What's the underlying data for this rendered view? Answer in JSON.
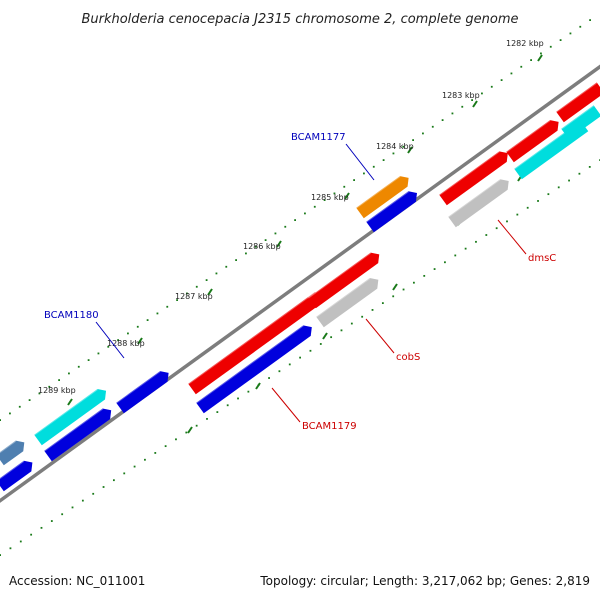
{
  "title": "Burkholderia cenocepacia J2315 chromosome 2, complete genome",
  "footer": {
    "accession": "Accession: NC_011001",
    "stats": "Topology: circular; Length: 3,217,062 bp; Genes: 2,819"
  },
  "colors": {
    "backbone": "#7d7d7d",
    "tick": "#1a7a1a",
    "red": "#ee0000",
    "blue": "#0000dd",
    "cyan": "#00dddd",
    "grey": "#c0c0c0",
    "orange": "#ee8800",
    "steel": "#4f7fb0",
    "label_blue": "#0000bb",
    "label_red": "#cc0000"
  },
  "ticks": [
    "1282 kbp",
    "1283 kbp",
    "1284 kbp",
    "1285 kbp",
    "1286 kbp",
    "1287 kbp",
    "1288 kbp",
    "1289 kbp"
  ],
  "gene_labels": [
    {
      "name": "BCAM1177",
      "color": "label_blue"
    },
    {
      "name": "BCAM1180",
      "color": "label_blue"
    },
    {
      "name": "dmsC",
      "color": "label_red"
    },
    {
      "name": "cobS",
      "color": "label_red"
    },
    {
      "name": "BCAM1179",
      "color": "label_red"
    }
  ]
}
